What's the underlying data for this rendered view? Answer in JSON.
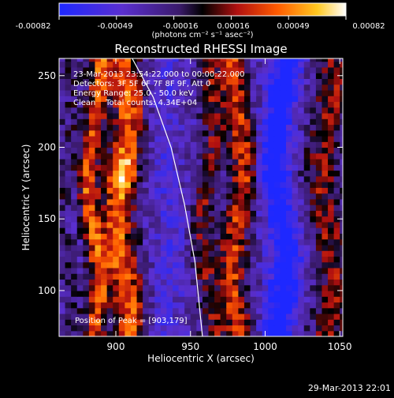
{
  "chart_data": {
    "type": "heatmap",
    "title": "Reconstructed RHESSI Image",
    "xlabel": "Heliocentric X (arcsec)",
    "ylabel": "Heliocentric Y (arcsec)",
    "xlim": [
      862,
      1052
    ],
    "ylim": [
      68,
      262
    ],
    "x_ticks": [
      900,
      950,
      1000,
      1050
    ],
    "y_ticks": [
      100,
      150,
      200,
      250
    ],
    "colorbar": {
      "min": -0.00082,
      "max": 0.00082,
      "ticks": [
        "-0.00082",
        "-0.00049",
        "-0.00016",
        "0.00016",
        "0.00049",
        "0.00082"
      ],
      "unit_label": "(photons cm⁻² s⁻¹ asec⁻²)"
    },
    "annotations": [
      "23-Mar-2013 23:54:22.000 to 00:00:22.000",
      "Detectors: 3F 5F 6F 7F 8F 9F, Att 0",
      "Energy Range: 25.0 - 50.0 keV",
      "Clean    Total counts: 4.34E+04"
    ],
    "peak_label": "Position of Peak = [903,179]",
    "peak": [
      903,
      179
    ],
    "limb_curve": [
      [
        911,
        262
      ],
      [
        925,
        235
      ],
      [
        937,
        200
      ],
      [
        946,
        160
      ],
      [
        953,
        120
      ],
      [
        958,
        68
      ]
    ],
    "bands": [
      {
        "x": 865,
        "w": 7,
        "a": 0.25
      },
      {
        "x": 883,
        "w": 7,
        "a": 0.95
      },
      {
        "x": 903,
        "w": 11,
        "a": 1.0
      },
      {
        "x": 932,
        "w": 10,
        "a": -0.25
      },
      {
        "x": 960,
        "w": 8,
        "a": 0.55
      },
      {
        "x": 980,
        "w": 9,
        "a": 0.85
      },
      {
        "x": 1008,
        "w": 10,
        "a": -0.9
      },
      {
        "x": 1040,
        "w": 12,
        "a": 0.6
      }
    ]
  },
  "footer": {
    "timestamp": "29-Mar-2013 22:01"
  }
}
